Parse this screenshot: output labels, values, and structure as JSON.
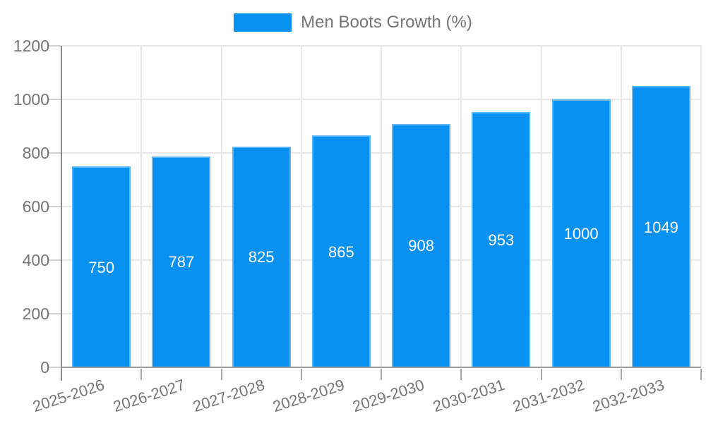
{
  "chart_data": {
    "type": "bar",
    "title": "",
    "legend_position": "top",
    "categories": [
      "2025-2026",
      "2026-2027",
      "2027-2028",
      "2028-2029",
      "2029-2030",
      "2030-2031",
      "2031-2032",
      "2032-2033"
    ],
    "series": [
      {
        "name": "Men Boots Growth (%)",
        "values": [
          750,
          787,
          825,
          865,
          908,
          953,
          1000,
          1049
        ]
      }
    ],
    "value_labels_shown": true,
    "xlabel": "",
    "ylabel": "",
    "ylim": [
      0,
      1200
    ],
    "yticks": [
      0,
      200,
      400,
      600,
      800,
      1000,
      1200
    ],
    "grid": true,
    "colors": {
      "bar_fill": "#0991f2",
      "bar_border": "#5ab5f8",
      "value_label": "#ffffff",
      "axis_text": "#757575",
      "grid_line": "#e8e8e8",
      "axis_line": "#8a8a8a",
      "baseline": "#9b9b9b"
    }
  }
}
